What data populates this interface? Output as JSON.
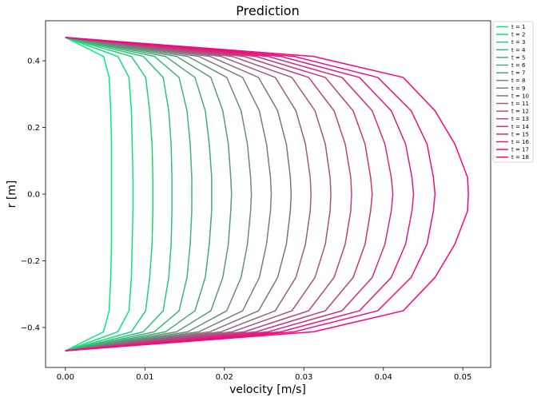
{
  "chart_data": {
    "type": "line",
    "title": "Prediction",
    "xlabel": "velocity [m/s]",
    "ylabel": "r [m]",
    "xlim": [
      -0.0025,
      0.0535
    ],
    "ylim": [
      -0.52,
      0.52
    ],
    "xticks": [
      0.0,
      0.01,
      0.02,
      0.03,
      0.04,
      0.05
    ],
    "xtick_labels": [
      "0.00",
      "0.01",
      "0.02",
      "0.03",
      "0.04",
      "0.05"
    ],
    "yticks": [
      -0.4,
      -0.2,
      0.0,
      0.2,
      0.4
    ],
    "ytick_labels": [
      "−0.4",
      "−0.2",
      "0.0",
      "0.2",
      "0.4"
    ],
    "grid": false,
    "legend_position": "outside-top-right",
    "color_start": "#00ee77",
    "color_end": "#ff0080",
    "r": [
      0.47,
      0.413,
      0.35,
      0.25,
      0.15,
      0.05,
      0.0,
      -0.05,
      -0.15,
      -0.25,
      -0.35,
      -0.413,
      -0.47
    ],
    "series": [
      {
        "name": "t = 1",
        "values": [
          0.0,
          0.0048,
          0.0055,
          0.0057,
          0.0058,
          0.0058,
          0.0058,
          0.0058,
          0.0058,
          0.0057,
          0.0055,
          0.0048,
          0.0
        ]
      },
      {
        "name": "t = 2",
        "values": [
          0.0,
          0.0066,
          0.008,
          0.0083,
          0.0084,
          0.0085,
          0.0085,
          0.0085,
          0.0084,
          0.0083,
          0.008,
          0.0066,
          0.0
        ]
      },
      {
        "name": "t = 3",
        "values": [
          0.0,
          0.0083,
          0.0101,
          0.0106,
          0.0109,
          0.011,
          0.011,
          0.011,
          0.0109,
          0.0106,
          0.0101,
          0.0083,
          0.0
        ]
      },
      {
        "name": "t = 4",
        "values": [
          0.0,
          0.0098,
          0.0123,
          0.013,
          0.0133,
          0.0134,
          0.0134,
          0.0134,
          0.0133,
          0.013,
          0.0123,
          0.0098,
          0.0
        ]
      },
      {
        "name": "t = 5",
        "values": [
          0.0,
          0.0112,
          0.0143,
          0.0153,
          0.0157,
          0.0159,
          0.0159,
          0.0159,
          0.0157,
          0.0153,
          0.0143,
          0.0112,
          0.0
        ]
      },
      {
        "name": "t = 6",
        "values": [
          0.0,
          0.0126,
          0.0163,
          0.0176,
          0.0181,
          0.0184,
          0.0184,
          0.0184,
          0.0181,
          0.0176,
          0.0163,
          0.0126,
          0.0
        ]
      },
      {
        "name": "t = 7",
        "values": [
          0.0,
          0.014,
          0.0183,
          0.0198,
          0.0205,
          0.0208,
          0.0209,
          0.0208,
          0.0205,
          0.0198,
          0.0183,
          0.014,
          0.0
        ]
      },
      {
        "name": "t = 8",
        "values": [
          0.0,
          0.0154,
          0.0203,
          0.0221,
          0.0229,
          0.0233,
          0.0234,
          0.0233,
          0.0229,
          0.0221,
          0.0203,
          0.0154,
          0.0
        ]
      },
      {
        "name": "t = 9",
        "values": [
          0.0,
          0.0168,
          0.0223,
          0.0244,
          0.0253,
          0.0258,
          0.0259,
          0.0258,
          0.0253,
          0.0244,
          0.0223,
          0.0168,
          0.0
        ]
      },
      {
        "name": "t = 10",
        "values": [
          0.0,
          0.0182,
          0.0243,
          0.0267,
          0.0278,
          0.0283,
          0.0284,
          0.0283,
          0.0278,
          0.0267,
          0.0243,
          0.0182,
          0.0
        ]
      },
      {
        "name": "t = 11",
        "values": [
          0.0,
          0.0196,
          0.0264,
          0.029,
          0.0302,
          0.0308,
          0.0309,
          0.0308,
          0.0302,
          0.029,
          0.0264,
          0.0196,
          0.0
        ]
      },
      {
        "name": "t = 12",
        "values": [
          0.0,
          0.021,
          0.0285,
          0.0314,
          0.0327,
          0.0333,
          0.0334,
          0.0333,
          0.0327,
          0.0314,
          0.0285,
          0.021,
          0.0
        ]
      },
      {
        "name": "t = 13",
        "values": [
          0.0,
          0.0225,
          0.0306,
          0.0338,
          0.0352,
          0.0359,
          0.036,
          0.0359,
          0.0352,
          0.0338,
          0.0306,
          0.0225,
          0.0
        ]
      },
      {
        "name": "t = 14",
        "values": [
          0.0,
          0.024,
          0.0327,
          0.0362,
          0.0377,
          0.0384,
          0.0386,
          0.0384,
          0.0377,
          0.0362,
          0.0327,
          0.024,
          0.0
        ]
      },
      {
        "name": "t = 15",
        "values": [
          0.0,
          0.0255,
          0.0348,
          0.0386,
          0.0402,
          0.041,
          0.0412,
          0.041,
          0.0402,
          0.0386,
          0.0348,
          0.0255,
          0.0
        ]
      },
      {
        "name": "t = 16",
        "values": [
          0.0,
          0.0271,
          0.037,
          0.041,
          0.0428,
          0.0436,
          0.0438,
          0.0436,
          0.0428,
          0.041,
          0.037,
          0.0271,
          0.0
        ]
      },
      {
        "name": "t = 17",
        "values": [
          0.0,
          0.0288,
          0.0393,
          0.0435,
          0.0455,
          0.0463,
          0.0465,
          0.0463,
          0.0455,
          0.0435,
          0.0393,
          0.0288,
          0.0
        ]
      },
      {
        "name": "t = 18",
        "values": [
          0.0,
          0.0312,
          0.0425,
          0.0465,
          0.049,
          0.0506,
          0.0507,
          0.0506,
          0.049,
          0.0465,
          0.0425,
          0.0312,
          0.0
        ]
      }
    ]
  }
}
